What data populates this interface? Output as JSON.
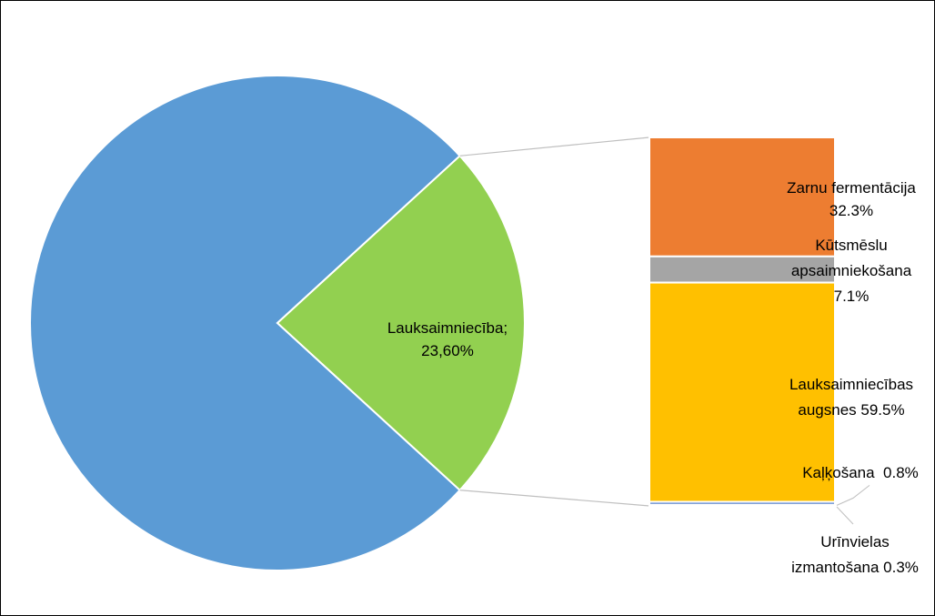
{
  "chart_data": {
    "type": "bar-of-pie",
    "pie": {
      "slices": [
        {
          "label": "",
          "value": 76.4,
          "color": "#5b9bd5"
        },
        {
          "label": "Lauksaimniecība;",
          "value_label": "23,60%",
          "value": 23.6,
          "color": "#92d050"
        }
      ]
    },
    "bar": {
      "segments": [
        {
          "label": "Zarnu fermentācija",
          "value_label": "32.3%",
          "value": 32.3,
          "color": "#ed7d31"
        },
        {
          "label": "Kūtsmēslu apsaimniekošana",
          "label_lines": [
            "Kūtsmēslu",
            "apsaimniekošana"
          ],
          "value_label": "7.1%",
          "value": 7.1,
          "color": "#a5a5a5"
        },
        {
          "label": "Lauksaimniecības augsnes",
          "label_lines": [
            "Lauksaimniecības",
            "augsnes 59.5%"
          ],
          "value_label": "59.5%",
          "value": 59.5,
          "color": "#ffc000"
        },
        {
          "label": "Kaļķošana",
          "value_label": "0.8%",
          "text": "Kaļķošana  0.8%",
          "value": 0.8,
          "color": "#4472c4"
        },
        {
          "label": "Urīnvielas izmantošana",
          "label_lines": [
            "Urīnvielas",
            "izmantošana 0.3%"
          ],
          "value_label": "0.3%",
          "value": 0.3,
          "color": "#70ad47"
        }
      ]
    }
  }
}
